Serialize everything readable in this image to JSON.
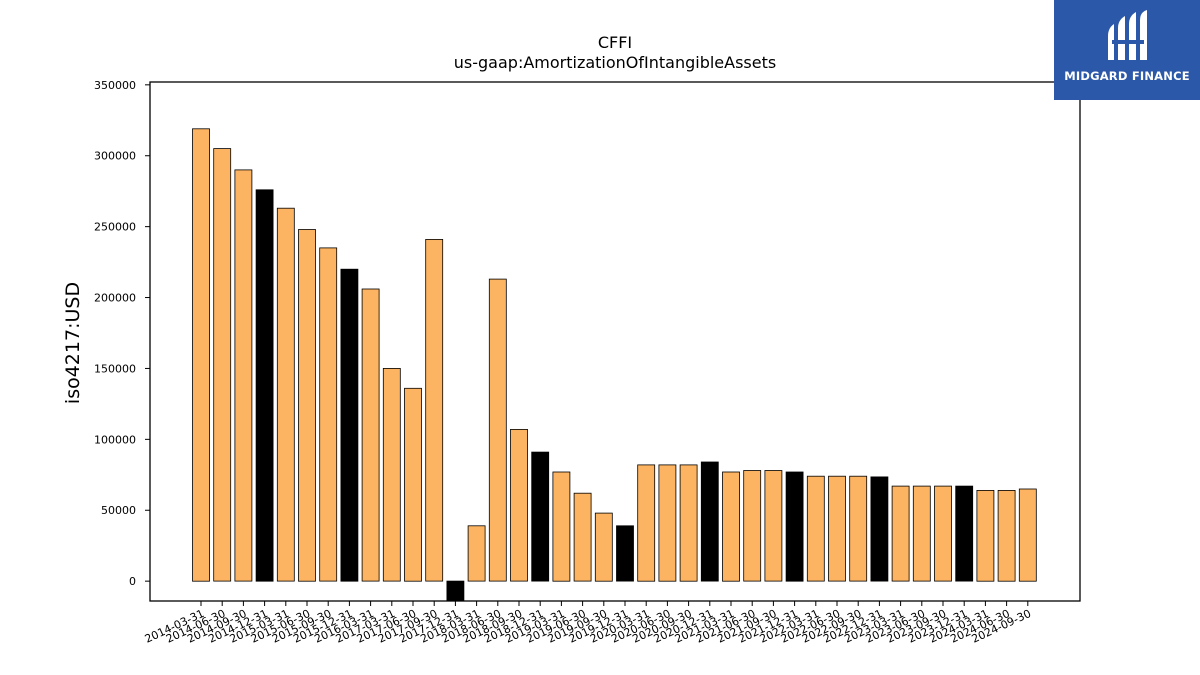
{
  "logo": {
    "text": "MIDGARD FINANCE",
    "background": "#2b58a8"
  },
  "chart_data": {
    "type": "bar",
    "title": "CFFI",
    "subtitle": "us-gaap:AmortizationOfIntangibleAssets",
    "xlabel": "",
    "ylabel": "iso4217:USD",
    "ylim": [
      -14000,
      352000
    ],
    "yticks": [
      0,
      50000,
      100000,
      150000,
      200000,
      250000,
      300000,
      350000
    ],
    "grid": false,
    "colors": {
      "quarter": "#fdb462",
      "year_end": "#000000",
      "edge": "#000000"
    },
    "categories": [
      "2014-03-31",
      "2014-06-30",
      "2014-09-30",
      "2014-12-31",
      "2015-03-31",
      "2015-06-30",
      "2015-09-30",
      "2015-12-31",
      "2016-03-31",
      "2017-03-31",
      "2017-06-30",
      "2017-09-30",
      "2017-12-31",
      "2018-03-31",
      "2018-06-30",
      "2018-09-30",
      "2018-12-31",
      "2019-03-31",
      "2019-06-30",
      "2019-09-30",
      "2019-12-31",
      "2020-03-31",
      "2020-06-30",
      "2020-09-30",
      "2020-12-31",
      "2021-03-31",
      "2021-06-30",
      "2021-09-30",
      "2021-12-31",
      "2022-03-31",
      "2022-06-30",
      "2022-09-30",
      "2022-12-31",
      "2023-03-31",
      "2023-06-30",
      "2023-09-30",
      "2023-12-31",
      "2024-03-31",
      "2024-06-30",
      "2024-09-30"
    ],
    "values": [
      319000,
      305000,
      290000,
      276000,
      263000,
      248000,
      235000,
      220000,
      206000,
      150000,
      136000,
      241000,
      -14000,
      39000,
      213000,
      107000,
      91000,
      77000,
      62000,
      48000,
      39000,
      82000,
      82000,
      82000,
      84000,
      77000,
      78000,
      78000,
      77000,
      74000,
      74000,
      74000,
      73500,
      67000,
      67000,
      67000,
      67000,
      64000,
      64000,
      65000
    ],
    "year_end": [
      false,
      false,
      false,
      true,
      false,
      false,
      false,
      true,
      false,
      false,
      false,
      false,
      true,
      false,
      false,
      false,
      true,
      false,
      false,
      false,
      true,
      false,
      false,
      false,
      true,
      false,
      false,
      false,
      true,
      false,
      false,
      false,
      true,
      false,
      false,
      false,
      true,
      false,
      false,
      false
    ]
  }
}
